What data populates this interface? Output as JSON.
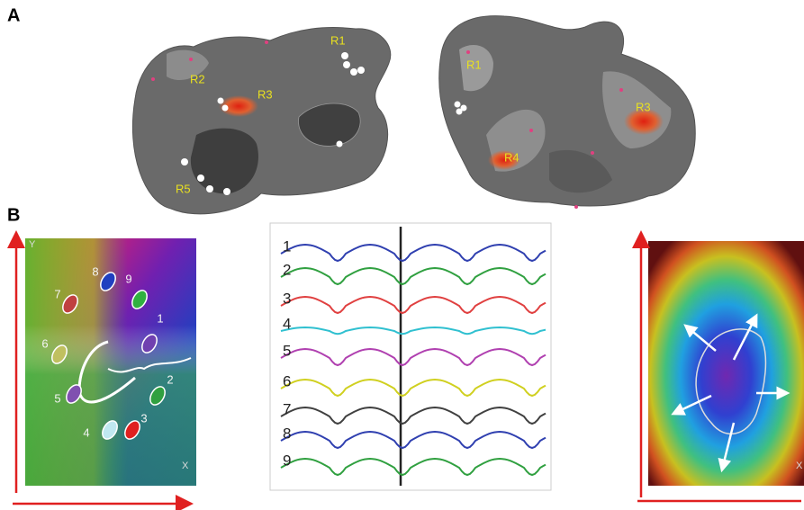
{
  "panels": [
    {
      "label": "A",
      "left_regions": [
        "R1",
        "R2",
        "R3",
        "R5"
      ],
      "right_regions": [
        "R1",
        "R3",
        "R4"
      ]
    },
    {
      "label": "B",
      "map_axes": [
        "Y",
        "X"
      ],
      "electrodes": [
        "1",
        "2",
        "3",
        "4",
        "5",
        "6",
        "7",
        "8",
        "9"
      ],
      "traces": [
        "1",
        "2",
        "3",
        "4",
        "5",
        "6",
        "7",
        "8",
        "9"
      ],
      "right_axis": "X"
    }
  ]
}
